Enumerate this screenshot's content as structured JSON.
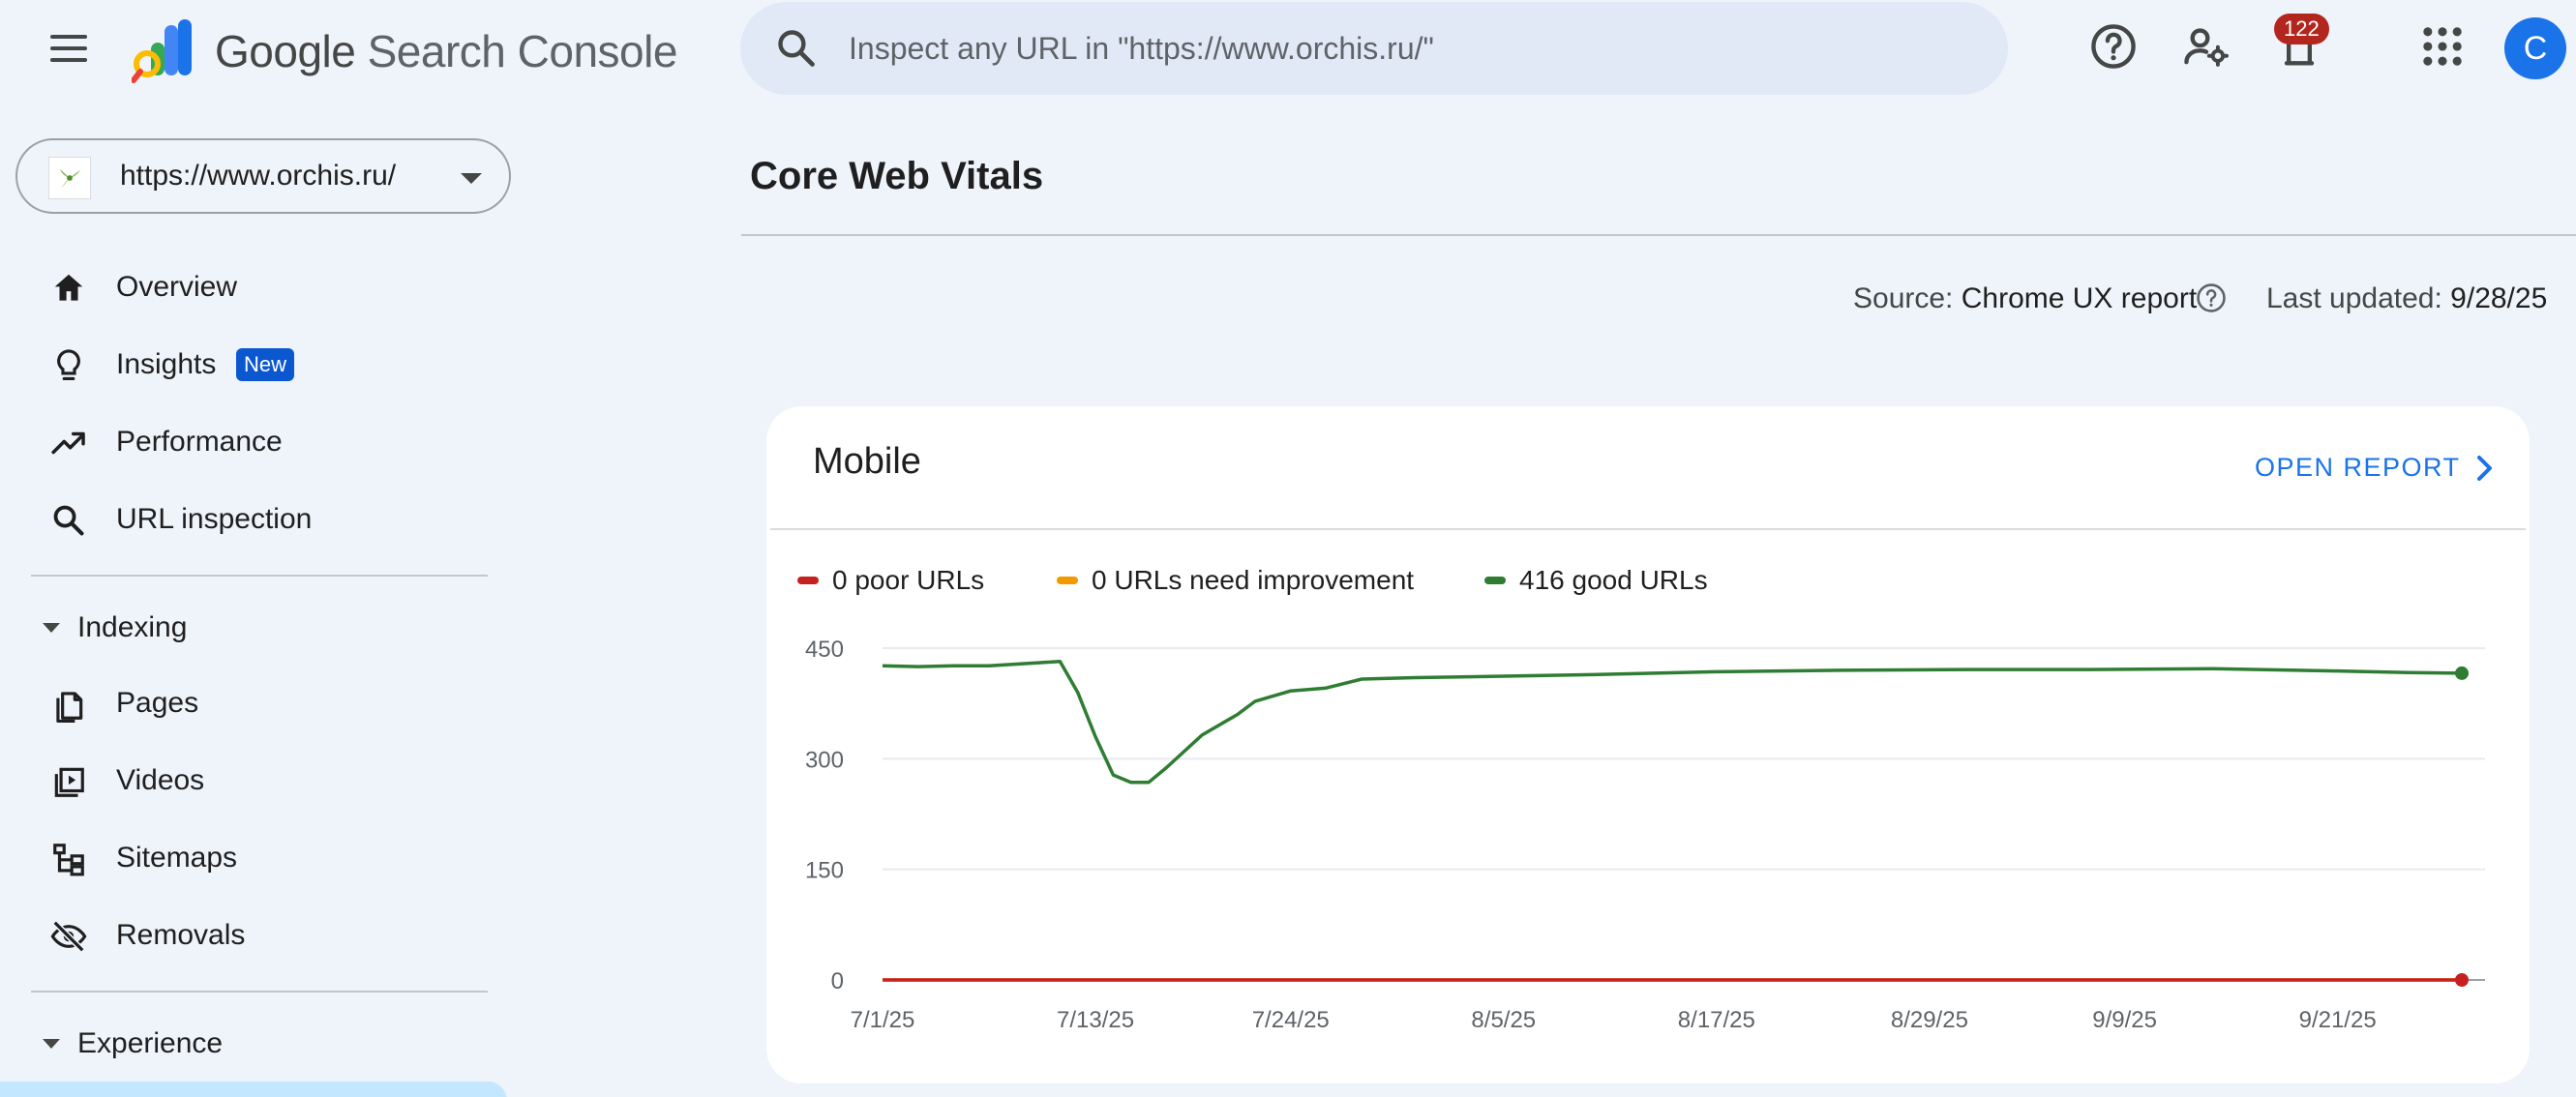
{
  "header": {
    "brand_google": "Google",
    "brand_product": "Search Console",
    "search_placeholder": "Inspect any URL in \"https://www.orchis.ru/\"",
    "notifications_count": "122",
    "avatar_initial": "C"
  },
  "property": {
    "url": "https://www.orchis.ru/"
  },
  "sidebar": {
    "items": [
      {
        "label": "Overview",
        "icon": "home-icon"
      },
      {
        "label": "Insights",
        "icon": "lightbulb-icon",
        "badge": "New"
      },
      {
        "label": "Performance",
        "icon": "trending-up-icon"
      },
      {
        "label": "URL inspection",
        "icon": "search-icon"
      }
    ],
    "sections": [
      {
        "label": "Indexing",
        "items": [
          {
            "label": "Pages",
            "icon": "pages-icon"
          },
          {
            "label": "Videos",
            "icon": "video-icon"
          },
          {
            "label": "Sitemaps",
            "icon": "sitemap-icon"
          },
          {
            "label": "Removals",
            "icon": "visibility-off-icon"
          }
        ]
      },
      {
        "label": "Experience",
        "items": []
      }
    ]
  },
  "main": {
    "title": "Core Web Vitals",
    "source_label": "Source:",
    "source_value": "Chrome UX report",
    "updated_label": "Last updated:",
    "updated_value": "9/28/25"
  },
  "card": {
    "title": "Mobile",
    "open_report": "OPEN REPORT"
  },
  "colors": {
    "poor": "#c5221f",
    "needs_improvement": "#f29900",
    "good": "#2e7d32",
    "accent": "#1a73e8"
  },
  "chart_data": {
    "type": "line",
    "ylim": [
      0,
      450
    ],
    "yticks": [
      0,
      150,
      300,
      450
    ],
    "xlim": [
      "7/1/25",
      "9/28/25"
    ],
    "xticks": [
      "7/1/25",
      "7/13/25",
      "7/24/25",
      "8/5/25",
      "8/17/25",
      "8/29/25",
      "9/9/25",
      "9/21/25"
    ],
    "legend_position": "top-left",
    "grid": true,
    "series": [
      {
        "name": "0 poor URLs",
        "color": "#c5221f",
        "points": [
          [
            "7/1/25",
            0
          ],
          [
            "9/28/25",
            0
          ]
        ]
      },
      {
        "name": "0 URLs need improvement",
        "color": "#f29900",
        "points": [
          [
            "7/1/25",
            0
          ],
          [
            "9/28/25",
            0
          ]
        ]
      },
      {
        "name": "416 good URLs",
        "color": "#2e7d32",
        "points": [
          [
            "7/1/25",
            426
          ],
          [
            "7/3/25",
            425
          ],
          [
            "7/5/25",
            426
          ],
          [
            "7/7/25",
            426
          ],
          [
            "7/9/25",
            429
          ],
          [
            "7/11/25",
            432
          ],
          [
            "7/12/25",
            390
          ],
          [
            "7/13/25",
            330
          ],
          [
            "7/14/25",
            278
          ],
          [
            "7/15/25",
            268
          ],
          [
            "7/16/25",
            268
          ],
          [
            "7/17/25",
            288
          ],
          [
            "7/19/25",
            332
          ],
          [
            "7/21/25",
            360
          ],
          [
            "7/22/25",
            378
          ],
          [
            "7/24/25",
            392
          ],
          [
            "7/26/25",
            396
          ],
          [
            "7/28/25",
            408
          ],
          [
            "7/31/25",
            410
          ],
          [
            "8/5/25",
            412
          ],
          [
            "8/10/25",
            414
          ],
          [
            "8/17/25",
            418
          ],
          [
            "8/24/25",
            420
          ],
          [
            "8/31/25",
            421
          ],
          [
            "9/7/25",
            421
          ],
          [
            "9/14/25",
            422
          ],
          [
            "9/21/25",
            419
          ],
          [
            "9/25/25",
            417
          ],
          [
            "9/28/25",
            416
          ]
        ]
      }
    ]
  }
}
